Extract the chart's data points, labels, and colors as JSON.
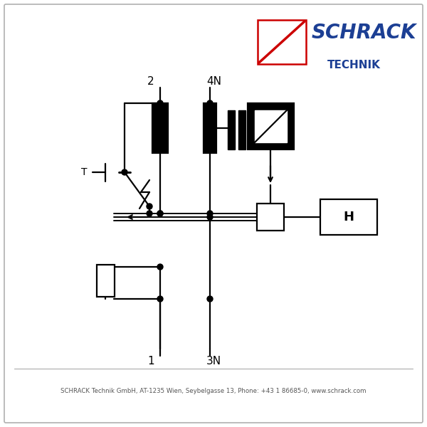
{
  "bg_color": "#ffffff",
  "border_color": "#b0b0b0",
  "line_color": "#000000",
  "logo_text_schrack": "SCHRACK",
  "logo_text_technik": "TECHNIK",
  "logo_blue": "#1c3f94",
  "logo_red": "#cc0000",
  "footer_text": "SCHRACK Technik GmbH, AT-1235 Wien, Seybelgasse 13, Phone: +43 1 86685-0, www.schrack.com",
  "label_2": "2",
  "label_4N": "4N",
  "label_1": "1",
  "label_3N": "3N",
  "label_H": "H",
  "label_T": "T"
}
